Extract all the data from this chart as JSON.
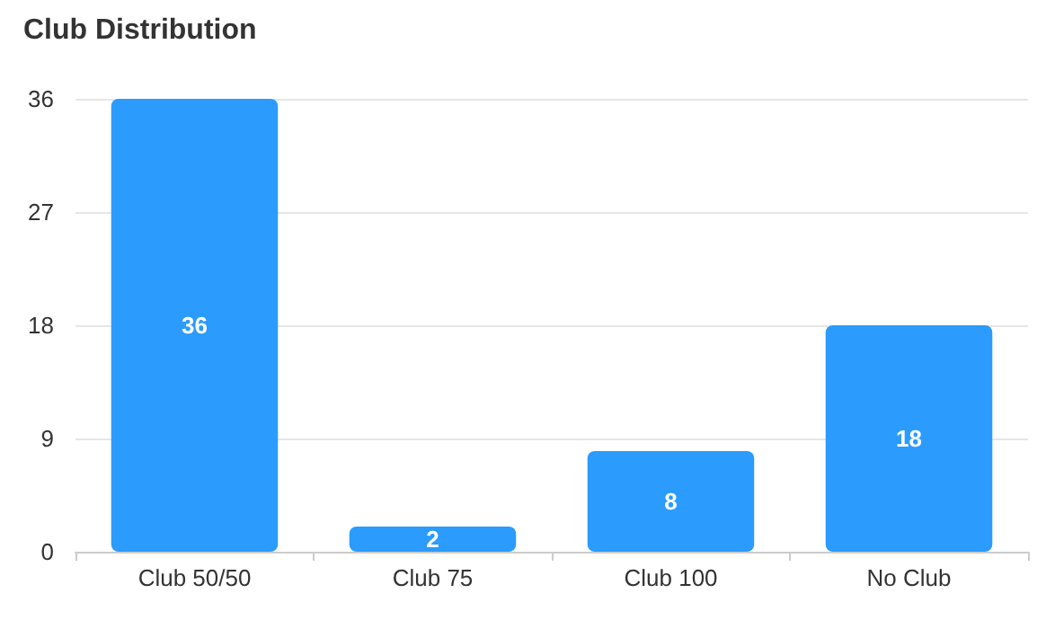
{
  "chart_data": {
    "type": "bar",
    "title": "Club Distribution",
    "categories": [
      "Club 50/50",
      "Club 75",
      "Club 100",
      "No Club"
    ],
    "values": [
      36,
      2,
      8,
      18
    ],
    "color": "#2b9bfd",
    "ylim": [
      0,
      36
    ],
    "yticks": [
      0,
      9,
      18,
      27,
      36
    ],
    "grid": "y",
    "data_labels": true
  }
}
